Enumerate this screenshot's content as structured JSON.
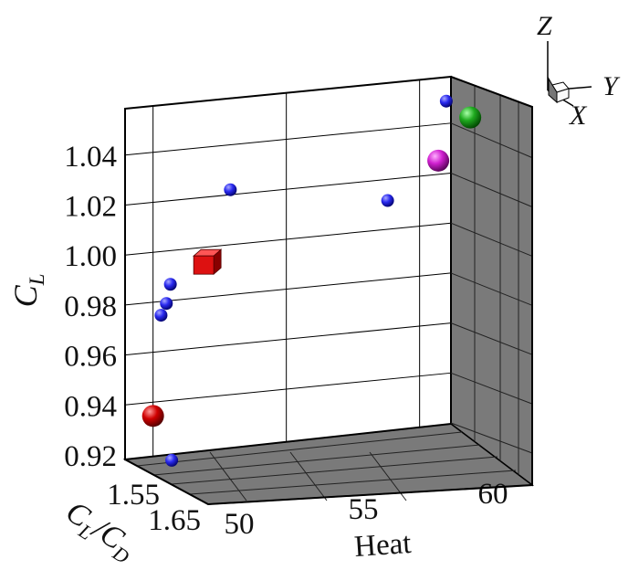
{
  "chart_data": {
    "type": "scatter",
    "projection": "3d",
    "axes": {
      "x": {
        "label": "Heat",
        "ticks": [
          "50",
          "55",
          "60"
        ]
      },
      "z": {
        "label": "C",
        "label_subscript": "L",
        "ticks": [
          "0.92",
          "0.94",
          "0.96",
          "0.98",
          "1.00",
          "1.02",
          "1.04"
        ],
        "range": [
          0.915,
          1.055
        ]
      },
      "y": {
        "label_parts": [
          "C",
          "L",
          "/C",
          "D"
        ],
        "ticks": [
          "1.55",
          "1.65"
        ]
      }
    },
    "orientation_triad": {
      "labels": [
        "Z",
        "Y",
        "X"
      ]
    },
    "grid": true,
    "walls": {
      "color": "#7a7a7a",
      "back_color": "#ffffff"
    },
    "points": [
      {
        "heat": 49.0,
        "cl": 0.9345,
        "shape": "sphere",
        "size": "large",
        "color": "#cc0000"
      },
      {
        "heat": 49.3,
        "cl": 0.9745,
        "shape": "sphere",
        "size": "small",
        "color": "#2222dd"
      },
      {
        "heat": 49.5,
        "cl": 0.979,
        "shape": "sphere",
        "size": "small",
        "color": "#2222dd"
      },
      {
        "heat": 49.65,
        "cl": 0.9865,
        "shape": "sphere",
        "size": "small",
        "color": "#2222dd"
      },
      {
        "heat": 50.9,
        "cl": 0.994,
        "shape": "cube",
        "size": "large",
        "color": "#dd1111"
      },
      {
        "heat": 51.9,
        "cl": 1.022,
        "shape": "sphere",
        "size": "small",
        "color": "#2222dd"
      },
      {
        "heat": 57.8,
        "cl": 1.0115,
        "shape": "sphere",
        "size": "small",
        "color": "#2222dd"
      },
      {
        "heat": 59.7,
        "cl": 1.0255,
        "shape": "sphere",
        "size": "large",
        "color": "#cc22cc"
      },
      {
        "heat": 60.0,
        "cl": 1.049,
        "shape": "sphere",
        "size": "small",
        "color": "#2222dd"
      },
      {
        "heat": 60.9,
        "cl": 1.0415,
        "shape": "sphere",
        "size": "large",
        "color": "#22aa22"
      },
      {
        "heat": 49.7,
        "cl": 0.916,
        "shape": "sphere",
        "size": "small",
        "color": "#2222dd"
      }
    ]
  }
}
